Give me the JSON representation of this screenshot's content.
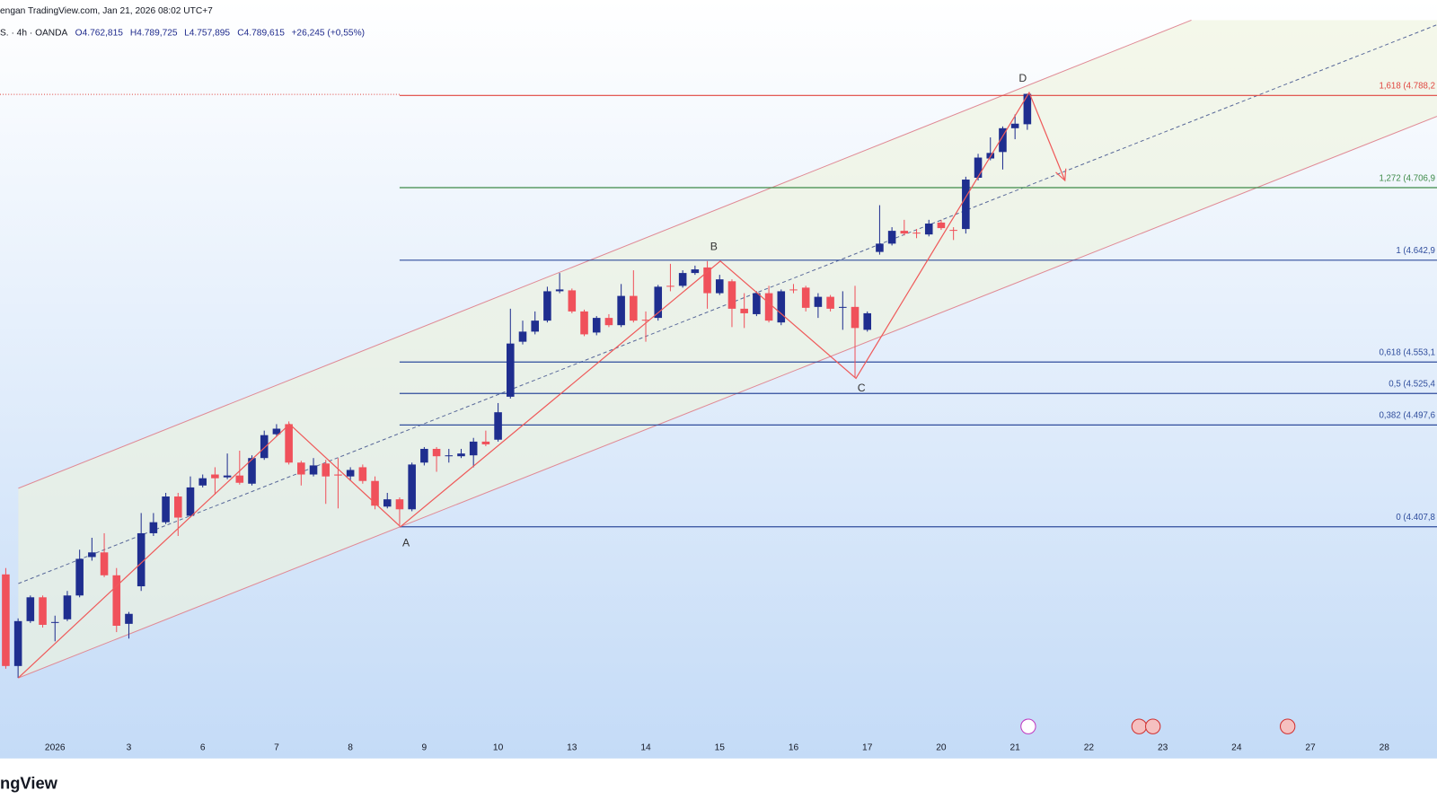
{
  "header": {
    "published": "engan TradingView.com, Jan 21, 2026 08:02 UTC+7",
    "symbol": "S. · 4h · OANDA",
    "ohlc": [
      "O4.762,815",
      "H4.789,725",
      "L4.757,895",
      "C4.789,615",
      "+26,245 (+0,55%)"
    ]
  },
  "chart_data": {
    "type": "candlestick",
    "categories": [
      null,
      null,
      null,
      null,
      "2026",
      null,
      null,
      null,
      null,
      null,
      "3",
      null,
      null,
      null,
      null,
      null,
      "6",
      null,
      null,
      null,
      null,
      null,
      "7",
      null,
      null,
      null,
      null,
      null,
      "8",
      null,
      null,
      null,
      null,
      null,
      "9",
      null,
      null,
      null,
      null,
      null,
      "10",
      null,
      null,
      null,
      null,
      null,
      "13",
      null,
      null,
      null,
      null,
      null,
      "14",
      null,
      null,
      null,
      null,
      null,
      "15",
      null,
      null,
      null,
      null,
      null,
      "16",
      null,
      null,
      null,
      null,
      null,
      "17",
      null,
      null,
      null,
      null,
      null,
      "20",
      null,
      null,
      null,
      null,
      null,
      "21",
      null,
      null,
      null,
      null,
      null,
      "22",
      null,
      null,
      null,
      null,
      null,
      "23",
      null,
      null,
      null,
      null,
      null,
      "24",
      null,
      null,
      null,
      null,
      null,
      "27",
      null,
      null,
      null,
      null,
      null,
      "28",
      null,
      null,
      null,
      null
    ],
    "open": [
      4365.8,
      4285.0,
      4324.6,
      4345.6,
      4323.0,
      4326.2,
      4347.2,
      4381.1,
      4385.2,
      4365.0,
      4322.2,
      4355.3,
      4402.1,
      4411.8,
      4434.5,
      4417.5,
      4444.2,
      4453.9,
      4451.4,
      4453.0,
      4445.8,
      4468.4,
      4489.4,
      4498.3,
      4464.4,
      4453.9,
      4463.6,
      4453.9,
      4452.2,
      4460.3,
      4448.2,
      4425.6,
      4432.0,
      4423.2,
      4464.4,
      4476.5,
      4470.0,
      4470.0,
      4470.8,
      4482.9,
      4484.6,
      4522.5,
      4571.0,
      4579.9,
      4589.6,
      4615.5,
      4616.3,
      4597.7,
      4579.1,
      4592.0,
      4585.6,
      4611.4,
      4590.4,
      4592.0,
      4620.3,
      4620.3,
      4631.6,
      4636.5,
      4613.8,
      4624.3,
      4600.1,
      4595.3,
      4613.8,
      4588.0,
      4617.1,
      4618.7,
      4601.7,
      4610.6,
      4600.9,
      4601.7,
      4581.5,
      4650.2,
      4657.5,
      4668.8,
      4667.2,
      4665.6,
      4676.1,
      4669.6,
      4670.4,
      4715.6,
      4732.6,
      4738.3,
      4759.3,
      4762.8,
      null,
      null,
      null,
      null,
      null,
      null,
      null,
      null,
      null,
      null,
      null,
      null,
      null,
      null,
      null,
      null,
      null,
      null,
      null,
      null,
      null,
      null,
      null,
      null,
      null,
      null,
      null,
      null,
      null,
      null,
      null,
      null,
      null
    ],
    "high": [
      4371.4,
      4327.0,
      4347.2,
      4347.2,
      4329.4,
      4351.2,
      4387.6,
      4398.1,
      4402.1,
      4371.4,
      4332.7,
      4419.9,
      4419.9,
      4437.7,
      4437.7,
      4452.2,
      4453.9,
      4460.3,
      4472.4,
      4474.9,
      4470.8,
      4492.6,
      4498.3,
      4500.7,
      4466.0,
      4468.4,
      4466.8,
      4468.4,
      4460.3,
      4462.7,
      4452.2,
      4437.7,
      4433.7,
      4464.4,
      4478.1,
      4478.1,
      4476.5,
      4476.5,
      4486.2,
      4492.6,
      4516.9,
      4600.1,
      4589.6,
      4597.7,
      4619.5,
      4631.6,
      4617.9,
      4599.3,
      4593.6,
      4595.3,
      4621.9,
      4634.0,
      4597.7,
      4621.1,
      4639.7,
      4634.0,
      4638.1,
      4642.1,
      4630.0,
      4626.0,
      4613.8,
      4615.5,
      4620.3,
      4617.1,
      4621.9,
      4620.3,
      4613.8,
      4612.2,
      4615.5,
      4620.3,
      4597.7,
      4691.4,
      4672.0,
      4678.5,
      4670.4,
      4678.5,
      4678.5,
      4672.0,
      4716.5,
      4736.7,
      4751.2,
      4760.9,
      4771.4,
      4789.7,
      null,
      null,
      null,
      null,
      null,
      null,
      null,
      null,
      null,
      null,
      null,
      null,
      null,
      null,
      null,
      null,
      null,
      null,
      null,
      null,
      null,
      null,
      null,
      null,
      null,
      null,
      null,
      null,
      null,
      null,
      null,
      null,
      null
    ],
    "low": [
      4282.6,
      4274.5,
      4323.0,
      4318.9,
      4306.8,
      4324.6,
      4345.6,
      4377.9,
      4363.4,
      4314.9,
      4309.2,
      4351.2,
      4399.7,
      4410.2,
      4399.7,
      4415.9,
      4442.5,
      4436.1,
      4449.8,
      4445.0,
      4444.2,
      4466.8,
      4487.8,
      4462.7,
      4444.2,
      4452.2,
      4428.0,
      4424.0,
      4448.2,
      4445.8,
      4423.2,
      4424.0,
      4409.4,
      4421.5,
      4461.9,
      4456.3,
      4464.4,
      4468.4,
      4460.3,
      4478.9,
      4482.9,
      4520.9,
      4568.6,
      4577.5,
      4588.0,
      4613.8,
      4596.1,
      4575.9,
      4576.7,
      4583.9,
      4583.9,
      4588.0,
      4571.0,
      4589.6,
      4615.5,
      4618.7,
      4630.0,
      4600.1,
      4612.2,
      4583.9,
      4583.1,
      4593.6,
      4588.0,
      4585.6,
      4613.8,
      4597.7,
      4592.0,
      4597.7,
      4581.5,
      4539.5,
      4579.9,
      4647.8,
      4655.9,
      4664.7,
      4662.3,
      4663.9,
      4669.6,
      4660.7,
      4666.4,
      4713.2,
      4731.0,
      4722.9,
      4749.6,
      4757.9,
      null,
      null,
      null,
      null,
      null,
      null,
      null,
      null,
      null,
      null,
      null,
      null,
      null,
      null,
      null,
      null,
      null,
      null,
      null,
      null,
      null,
      null,
      null,
      null,
      null,
      null,
      null,
      null,
      null,
      null,
      null,
      null,
      null
    ],
    "close": [
      4285.0,
      4324.6,
      4345.6,
      4321.3,
      4323.8,
      4347.2,
      4379.5,
      4385.2,
      4365.0,
      4320.5,
      4331.0,
      4402.1,
      4411.8,
      4434.5,
      4415.9,
      4442.5,
      4450.6,
      4450.6,
      4453.0,
      4446.6,
      4468.4,
      4488.6,
      4494.3,
      4464.4,
      4453.9,
      4461.9,
      4452.2,
      4453.0,
      4457.9,
      4448.2,
      4426.4,
      4432.0,
      4423.2,
      4462.7,
      4476.5,
      4470.0,
      4470.8,
      4472.4,
      4482.9,
      4480.5,
      4508.8,
      4569.4,
      4579.9,
      4589.6,
      4615.5,
      4617.1,
      4597.7,
      4577.5,
      4592.0,
      4585.6,
      4611.4,
      4589.6,
      4589.6,
      4619.5,
      4619.5,
      4631.6,
      4634.8,
      4613.8,
      4626.0,
      4600.1,
      4596.1,
      4613.8,
      4589.6,
      4615.5,
      4616.3,
      4600.9,
      4610.6,
      4600.1,
      4601.7,
      4583.1,
      4596.1,
      4657.5,
      4668.8,
      4666.4,
      4666.4,
      4675.2,
      4671.2,
      4668.8,
      4714.0,
      4733.4,
      4737.5,
      4759.3,
      4763.3,
      4789.6,
      null,
      null,
      null,
      null,
      null,
      null,
      null,
      null,
      null,
      null,
      null,
      null,
      null,
      null,
      null,
      null,
      null,
      null,
      null,
      null,
      null,
      null,
      null,
      null,
      null,
      null,
      null,
      null,
      null,
      null,
      null,
      null,
      null
    ],
    "up_color": "#1f2e8f",
    "down_color": "#f0515b",
    "ylim": [
      4203.4,
      4854.6
    ],
    "fib_levels": [
      {
        "value": 4788.2,
        "label": "1,618 (4.788,2",
        "color": "#e0443e"
      },
      {
        "value": 4706.9,
        "label": "1,272 (4.706,9",
        "color": "#3d8a47"
      },
      {
        "value": 4642.9,
        "label": "1 (4.642,9",
        "color": "#2f4d9c"
      },
      {
        "value": 4553.1,
        "label": "0,618 (4.553,1",
        "color": "#2f4d9c"
      },
      {
        "value": 4525.4,
        "label": "0,5 (4.525,4",
        "color": "#2f4d9c"
      },
      {
        "value": 4497.6,
        "label": "0,382 (4.497,6",
        "color": "#2f4d9c"
      },
      {
        "value": 4407.8,
        "label": "0 (4.407,8",
        "color": "#2f4d9c"
      }
    ],
    "pattern_labels": [
      "A",
      "B",
      "C",
      "D"
    ]
  },
  "logo": "ngView"
}
